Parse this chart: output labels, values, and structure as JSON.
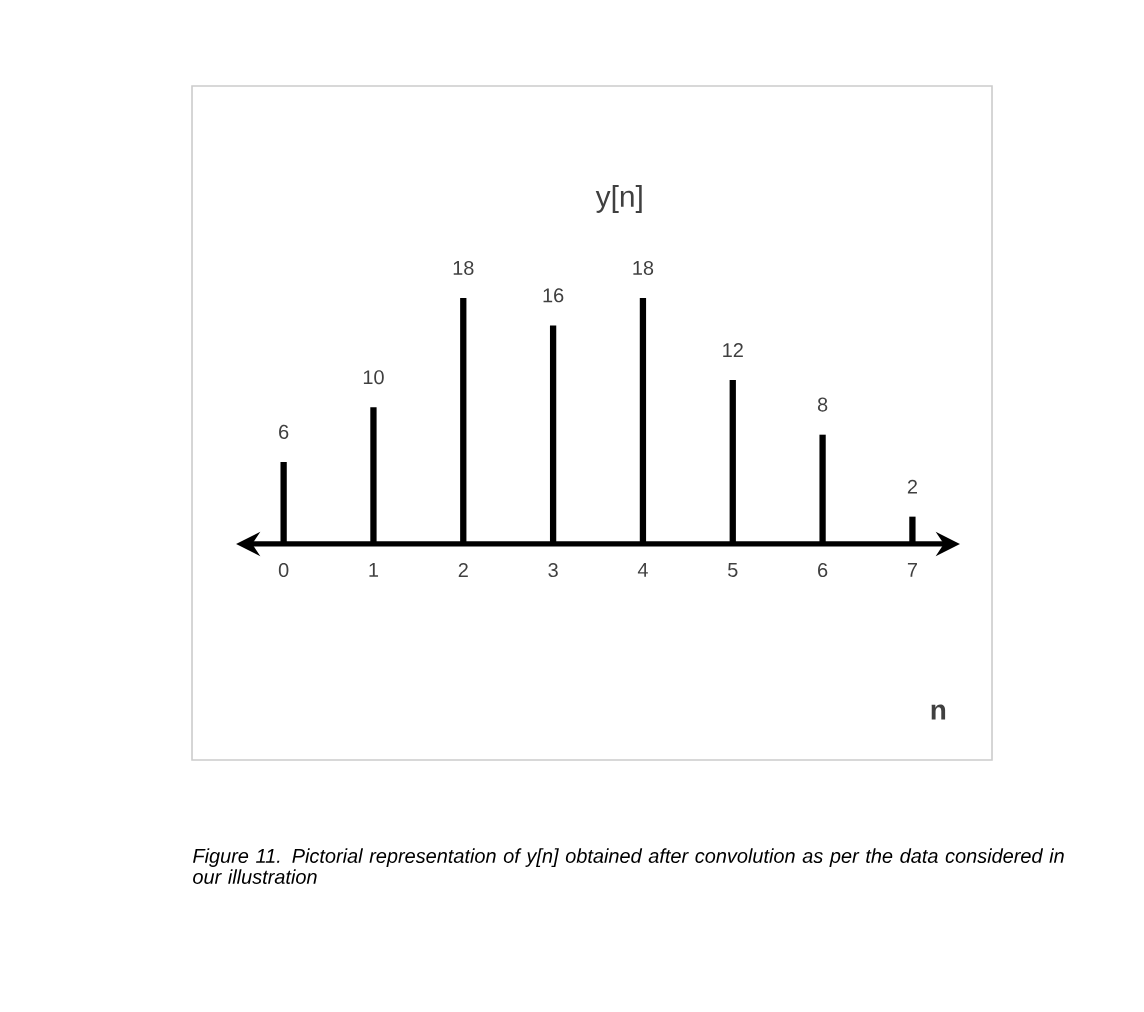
{
  "chart_data": {
    "type": "bar",
    "title": "y[n]",
    "xlabel": "n",
    "categories": [
      "0",
      "1",
      "2",
      "3",
      "4",
      "5",
      "6",
      "7"
    ],
    "values": [
      6,
      10,
      18,
      16,
      18,
      12,
      8,
      2
    ],
    "color": "#000000",
    "data_labels": true,
    "annotations": [
      "Figure 11. Pictorial representation of y[n] obtained after convolution as per the data considered in our illustration"
    ]
  }
}
